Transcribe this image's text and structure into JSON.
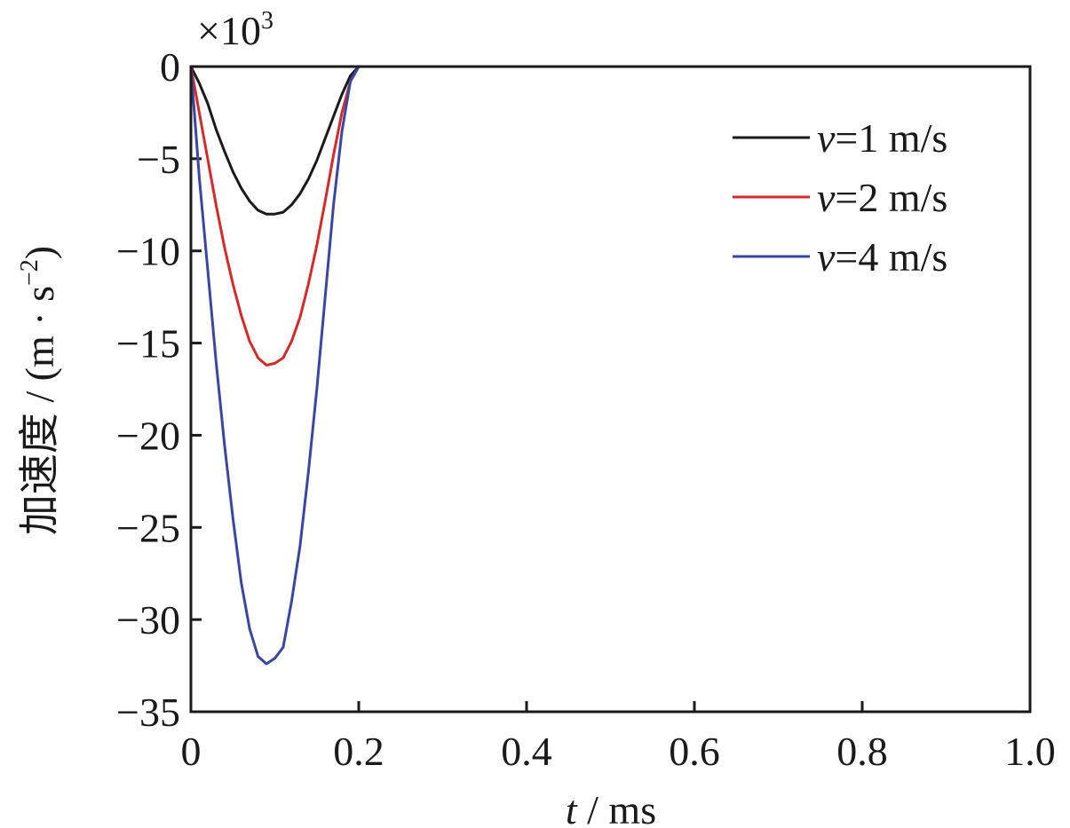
{
  "chart_data": {
    "type": "line",
    "xlabel_var": "t",
    "xlabel_unit": " / ms",
    "ylabel_text": "加速度 / (m · s",
    "ylabel_sup": "−2",
    "ylabel_close": ")",
    "scale_prefix": "×10",
    "scale_exp": "3",
    "xlim": [
      0,
      1.0
    ],
    "ylim": [
      -35,
      0
    ],
    "xticks": [
      0,
      0.2,
      0.4,
      0.6,
      0.8,
      1.0
    ],
    "xtick_labels": [
      "0",
      "0.2",
      "0.4",
      "0.6",
      "0.8",
      "1.0"
    ],
    "yticks": [
      0,
      -5,
      -10,
      -15,
      -20,
      -25,
      -30,
      -35
    ],
    "ytick_labels": [
      "0",
      "−5",
      "−10",
      "−15",
      "−20",
      "−25",
      "−30",
      "−35"
    ],
    "legend_position": "top-right",
    "series": [
      {
        "name_var": "v",
        "name_rest": "=1 m/s",
        "color": "#1a1a1a",
        "x": [
          0,
          0.01,
          0.02,
          0.03,
          0.04,
          0.05,
          0.06,
          0.07,
          0.08,
          0.09,
          0.1,
          0.11,
          0.12,
          0.13,
          0.14,
          0.15,
          0.16,
          0.17,
          0.18,
          0.19,
          0.2,
          0.25,
          0.5,
          0.75,
          1.0
        ],
        "y": [
          0,
          -0.9,
          -2.0,
          -3.4,
          -4.6,
          -5.7,
          -6.6,
          -7.3,
          -7.8,
          -8.0,
          -8.0,
          -7.9,
          -7.5,
          -6.9,
          -6.1,
          -5.1,
          -3.9,
          -2.7,
          -1.5,
          -0.5,
          0,
          0,
          0,
          0,
          0
        ]
      },
      {
        "name_var": "v",
        "name_rest": "=2 m/s",
        "color": "#d42a2a",
        "x": [
          0,
          0.01,
          0.02,
          0.03,
          0.04,
          0.05,
          0.06,
          0.07,
          0.08,
          0.09,
          0.1,
          0.11,
          0.12,
          0.13,
          0.14,
          0.15,
          0.16,
          0.17,
          0.18,
          0.19,
          0.2,
          0.25,
          0.5,
          0.75,
          1.0
        ],
        "y": [
          0,
          -2.5,
          -5.0,
          -7.5,
          -9.8,
          -11.8,
          -13.5,
          -14.9,
          -15.8,
          -16.2,
          -16.1,
          -15.8,
          -14.9,
          -13.6,
          -11.8,
          -9.7,
          -7.3,
          -4.8,
          -2.5,
          -0.8,
          0,
          0,
          0,
          0,
          0
        ]
      },
      {
        "name_var": "v",
        "name_rest": "=4 m/s",
        "color": "#3a46a0",
        "x": [
          0,
          0.01,
          0.02,
          0.03,
          0.04,
          0.05,
          0.06,
          0.07,
          0.08,
          0.09,
          0.1,
          0.11,
          0.12,
          0.13,
          0.14,
          0.15,
          0.16,
          0.17,
          0.18,
          0.19,
          0.2,
          0.25,
          0.5,
          0.75,
          1.0
        ],
        "y": [
          0,
          -6.0,
          -11.0,
          -16.0,
          -20.5,
          -24.5,
          -28.0,
          -30.5,
          -32.0,
          -32.4,
          -32.1,
          -31.5,
          -29.0,
          -26.0,
          -22.0,
          -17.5,
          -12.5,
          -7.5,
          -3.5,
          -0.8,
          0,
          0,
          0,
          0,
          0
        ]
      }
    ]
  }
}
